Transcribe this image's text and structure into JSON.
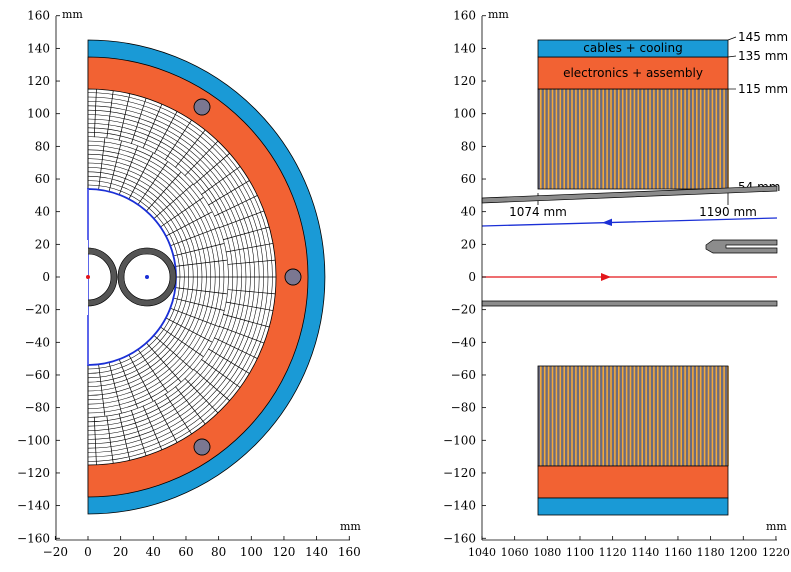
{
  "colors": {
    "cables_cooling": "#1a9ad6",
    "electronics": "#f26233",
    "sensor_stripes": "#f2a93b",
    "sensor_dark": "#6b6b80",
    "circle_fill": "#7b7791",
    "beam_red": "#e3161b",
    "beam_blue": "#1a2fd6",
    "pipe_gray": "#8c8c8c"
  },
  "left_panel": {
    "x_unit": "mm",
    "y_unit": "mm",
    "x_ticks": [
      {
        "v": -20,
        "label": "−20"
      },
      {
        "v": 0,
        "label": "0"
      },
      {
        "v": 20,
        "label": "20"
      },
      {
        "v": 40,
        "label": "40"
      },
      {
        "v": 60,
        "label": "60"
      },
      {
        "v": 80,
        "label": "80"
      },
      {
        "v": 100,
        "label": "100"
      },
      {
        "v": 120,
        "label": "120"
      },
      {
        "v": 140,
        "label": "140"
      },
      {
        "v": 160,
        "label": "160"
      }
    ],
    "y_ticks": [
      {
        "v": 160,
        "label": "160"
      },
      {
        "v": 140,
        "label": "140"
      },
      {
        "v": 120,
        "label": "120"
      },
      {
        "v": 100,
        "label": "100"
      },
      {
        "v": 80,
        "label": "80"
      },
      {
        "v": 60,
        "label": "60"
      },
      {
        "v": 40,
        "label": "40"
      },
      {
        "v": 20,
        "label": "20"
      },
      {
        "v": 0,
        "label": "0"
      },
      {
        "v": -20,
        "label": "−20"
      },
      {
        "v": -40,
        "label": "−40"
      },
      {
        "v": -60,
        "label": "−60"
      },
      {
        "v": -80,
        "label": "−80"
      },
      {
        "v": -100,
        "label": "−100"
      },
      {
        "v": -120,
        "label": "−120"
      },
      {
        "v": -140,
        "label": "−140"
      },
      {
        "v": -160,
        "label": "−160"
      }
    ],
    "radii_mm": {
      "inner": 54,
      "sensor_outer": 115,
      "electronics_outer": 135,
      "cables_outer": 145
    }
  },
  "right_panel": {
    "x_unit": "mm",
    "y_unit": "mm",
    "x_ticks": [
      {
        "v": 1040,
        "label": "1040"
      },
      {
        "v": 1060,
        "label": "1060"
      },
      {
        "v": 1080,
        "label": "1080"
      },
      {
        "v": 1100,
        "label": "1100"
      },
      {
        "v": 1120,
        "label": "1120"
      },
      {
        "v": 1140,
        "label": "1140"
      },
      {
        "v": 1160,
        "label": "1160"
      },
      {
        "v": 1180,
        "label": "1180"
      },
      {
        "v": 1200,
        "label": "1200"
      },
      {
        "v": 1220,
        "label": "1220"
      }
    ],
    "y_ticks": [
      {
        "v": 160,
        "label": "160"
      },
      {
        "v": 140,
        "label": "140"
      },
      {
        "v": 120,
        "label": "120"
      },
      {
        "v": 100,
        "label": "100"
      },
      {
        "v": 80,
        "label": "80"
      },
      {
        "v": 60,
        "label": "60"
      },
      {
        "v": 40,
        "label": "40"
      },
      {
        "v": 20,
        "label": "20"
      },
      {
        "v": 0,
        "label": "0"
      },
      {
        "v": -20,
        "label": "−20"
      },
      {
        "v": -40,
        "label": "−40"
      },
      {
        "v": -60,
        "label": "−60"
      },
      {
        "v": -80,
        "label": "−80"
      },
      {
        "v": -100,
        "label": "−100"
      },
      {
        "v": -120,
        "label": "−120"
      },
      {
        "v": -140,
        "label": "−140"
      },
      {
        "v": -160,
        "label": "−160"
      }
    ],
    "box_labels": {
      "cables": "cables + cooling",
      "electronics": "electronics + assembly"
    },
    "dimension_labels": {
      "r145": "145 mm",
      "r135": "135 mm",
      "r115": "115 mm",
      "r54": "54 mm",
      "z_start": "1074 mm",
      "z_end": "1190 mm"
    },
    "extent_mm": {
      "z_start": 1074,
      "z_end": 1190,
      "r_inner": 54,
      "r_sensor": 115,
      "r_elec": 135,
      "r_cables": 145
    }
  }
}
